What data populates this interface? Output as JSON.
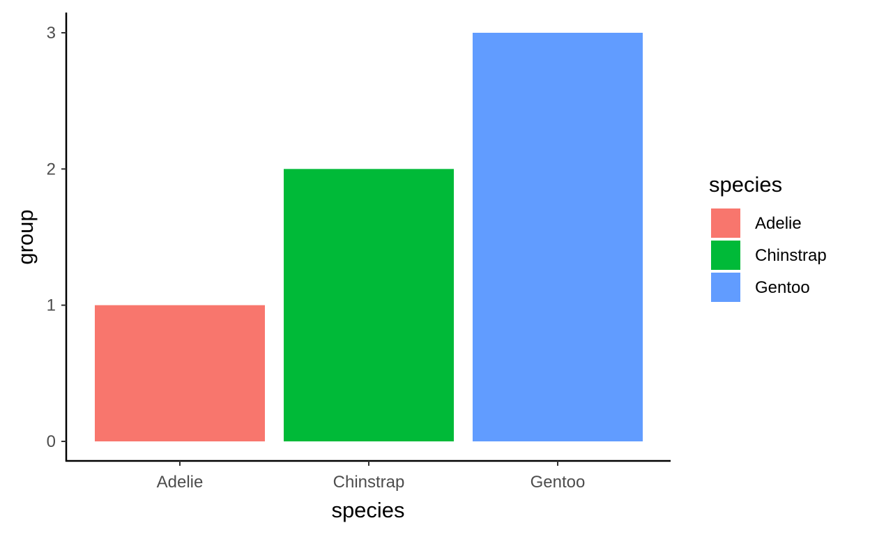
{
  "chart_data": {
    "type": "bar",
    "categories": [
      "Adelie",
      "Chinstrap",
      "Gentoo"
    ],
    "values": [
      1,
      2,
      3
    ],
    "colors": [
      "#F8766D",
      "#00BA38",
      "#619CFF"
    ],
    "xlabel": "species",
    "ylabel": "group",
    "yticks": [
      "0",
      "1",
      "2",
      "3"
    ],
    "ylim": [
      0,
      3
    ],
    "grid": false,
    "legend": {
      "title": "species",
      "placement": "right",
      "entries": [
        "Adelie",
        "Chinstrap",
        "Gentoo"
      ]
    }
  }
}
